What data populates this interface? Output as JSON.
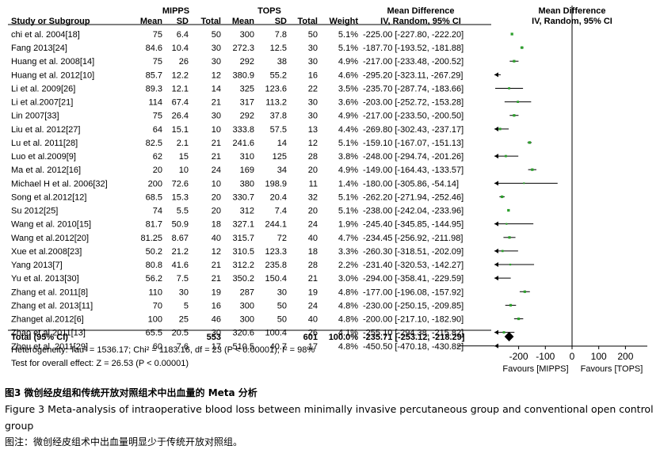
{
  "chart_data": {
    "type": "forest",
    "group_headers": [
      "MIPPS",
      "TOPS"
    ],
    "columns": [
      "Study or Subgroup",
      "Mean",
      "SD",
      "Total",
      "Mean",
      "SD",
      "Total",
      "Weight"
    ],
    "effect_header": "Mean Difference",
    "effect_subheader": "IV, Random, 95% CI",
    "plot_header": "Mean Difference",
    "plot_subheader": "IV, Random, 95% CI",
    "studies": [
      {
        "study": "chi et al. 2004[18]",
        "m1": "75",
        "sd1": "6.4",
        "n1": "50",
        "m2": "300",
        "sd2": "7.8",
        "n2": "50",
        "weight": "5.1%",
        "ci": "-225.00 [-227.80, -222.20]",
        "md": -225.0,
        "lo": -227.8,
        "hi": -222.2
      },
      {
        "study": "Fang 2013[24]",
        "m1": "84.6",
        "sd1": "10.4",
        "n1": "30",
        "m2": "272.3",
        "sd2": "12.5",
        "n2": "30",
        "weight": "5.1%",
        "ci": "-187.70 [-193.52, -181.88]",
        "md": -187.7,
        "lo": -193.52,
        "hi": -181.88
      },
      {
        "study": "Huang et al. 2008[14]",
        "m1": "75",
        "sd1": "26",
        "n1": "30",
        "m2": "292",
        "sd2": "38",
        "n2": "30",
        "weight": "4.9%",
        "ci": "-217.00 [-233.48, -200.52]",
        "md": -217.0,
        "lo": -233.48,
        "hi": -200.52
      },
      {
        "study": "Huang et al. 2012[10]",
        "m1": "85.7",
        "sd1": "12.2",
        "n1": "12",
        "m2": "380.9",
        "sd2": "55.2",
        "n2": "16",
        "weight": "4.6%",
        "ci": "-295.20 [-323.11, -267.29]",
        "md": -295.2,
        "lo": -323.11,
        "hi": -267.29
      },
      {
        "study": "Li et al. 2009[26]",
        "m1": "89.3",
        "sd1": "12.1",
        "n1": "14",
        "m2": "325",
        "sd2": "123.6",
        "n2": "22",
        "weight": "3.5%",
        "ci": "-235.70 [-287.74, -183.66]",
        "md": -235.7,
        "lo": -287.74,
        "hi": -183.66
      },
      {
        "study": "Li et al.2007[21]",
        "m1": "114",
        "sd1": "67.4",
        "n1": "21",
        "m2": "317",
        "sd2": "113.2",
        "n2": "30",
        "weight": "3.6%",
        "ci": "-203.00 [-252.72, -153.28]",
        "md": -203.0,
        "lo": -252.72,
        "hi": -153.28
      },
      {
        "study": "Lin 2007[33]",
        "m1": "75",
        "sd1": "26.4",
        "n1": "30",
        "m2": "292",
        "sd2": "37.8",
        "n2": "30",
        "weight": "4.9%",
        "ci": "-217.00 [-233.50, -200.50]",
        "md": -217.0,
        "lo": -233.5,
        "hi": -200.5
      },
      {
        "study": "Liu et al. 2012[27]",
        "m1": "64",
        "sd1": "15.1",
        "n1": "10",
        "m2": "333.8",
        "sd2": "57.5",
        "n2": "13",
        "weight": "4.4%",
        "ci": "-269.80 [-302.43, -237.17]",
        "md": -269.8,
        "lo": -302.43,
        "hi": -237.17
      },
      {
        "study": "Lu et al. 2011[28]",
        "m1": "82.5",
        "sd1": "2.1",
        "n1": "21",
        "m2": "241.6",
        "sd2": "14",
        "n2": "12",
        "weight": "5.1%",
        "ci": "-159.10 [-167.07, -151.13]",
        "md": -159.1,
        "lo": -167.07,
        "hi": -151.13
      },
      {
        "study": "Luo et al.2009[9]",
        "m1": "62",
        "sd1": "15",
        "n1": "21",
        "m2": "310",
        "sd2": "125",
        "n2": "28",
        "weight": "3.8%",
        "ci": "-248.00 [-294.74, -201.26]",
        "md": -248.0,
        "lo": -294.74,
        "hi": -201.26
      },
      {
        "study": "Ma et al. 2012[16]",
        "m1": "20",
        "sd1": "10",
        "n1": "24",
        "m2": "169",
        "sd2": "34",
        "n2": "20",
        "weight": "4.9%",
        "ci": "-149.00 [-164.43, -133.57]",
        "md": -149.0,
        "lo": -164.43,
        "hi": -133.57
      },
      {
        "study": "Michael H et al. 2006[32]",
        "m1": "200",
        "sd1": "72.6",
        "n1": "10",
        "m2": "380",
        "sd2": "198.9",
        "n2": "11",
        "weight": "1.4%",
        "ci": "-180.00 [-305.86, -54.14]",
        "md": -180.0,
        "lo": -305.86,
        "hi": -54.14
      },
      {
        "study": "Song et al.2012[12]",
        "m1": "68.5",
        "sd1": "15.3",
        "n1": "20",
        "m2": "330.7",
        "sd2": "20.4",
        "n2": "32",
        "weight": "5.1%",
        "ci": "-262.20 [-271.94, -252.46]",
        "md": -262.2,
        "lo": -271.94,
        "hi": -252.46
      },
      {
        "study": "Su 2012[25]",
        "m1": "74",
        "sd1": "5.5",
        "n1": "20",
        "m2": "312",
        "sd2": "7.4",
        "n2": "20",
        "weight": "5.1%",
        "ci": "-238.00 [-242.04, -233.96]",
        "md": -238.0,
        "lo": -242.04,
        "hi": -233.96
      },
      {
        "study": "Wang et al. 2010[15]",
        "m1": "81.7",
        "sd1": "50.9",
        "n1": "18",
        "m2": "327.1",
        "sd2": "244.1",
        "n2": "24",
        "weight": "1.9%",
        "ci": "-245.40 [-345.85, -144.95]",
        "md": -245.4,
        "lo": -345.85,
        "hi": -144.95
      },
      {
        "study": "Wang et al.2012[20]",
        "m1": "81.25",
        "sd1": "8.67",
        "n1": "40",
        "m2": "315.7",
        "sd2": "72",
        "n2": "40",
        "weight": "4.7%",
        "ci": "-234.45 [-256.92, -211.98]",
        "md": -234.45,
        "lo": -256.92,
        "hi": -211.98
      },
      {
        "study": "Xue et al.2008[23]",
        "m1": "50.2",
        "sd1": "21.2",
        "n1": "12",
        "m2": "310.5",
        "sd2": "123.3",
        "n2": "18",
        "weight": "3.3%",
        "ci": "-260.30 [-318.51, -202.09]",
        "md": -260.3,
        "lo": -318.51,
        "hi": -202.09
      },
      {
        "study": "Yang 2013[7]",
        "m1": "80.8",
        "sd1": "41.6",
        "n1": "21",
        "m2": "312.2",
        "sd2": "235.8",
        "n2": "28",
        "weight": "2.2%",
        "ci": "-231.40 [-320.53, -142.27]",
        "md": -231.4,
        "lo": -320.53,
        "hi": -142.27
      },
      {
        "study": "Yu et al. 2013[30]",
        "m1": "56.2",
        "sd1": "7.5",
        "n1": "21",
        "m2": "350.2",
        "sd2": "150.4",
        "n2": "21",
        "weight": "3.0%",
        "ci": "-294.00 [-358.41, -229.59]",
        "md": -294.0,
        "lo": -358.41,
        "hi": -229.59
      },
      {
        "study": "Zhang et al. 2011[8]",
        "m1": "110",
        "sd1": "30",
        "n1": "19",
        "m2": "287",
        "sd2": "30",
        "n2": "19",
        "weight": "4.8%",
        "ci": "-177.00 [-196.08, -157.92]",
        "md": -177.0,
        "lo": -196.08,
        "hi": -157.92
      },
      {
        "study": "Zhang et al. 2013[11]",
        "m1": "70",
        "sd1": "5",
        "n1": "16",
        "m2": "300",
        "sd2": "50",
        "n2": "24",
        "weight": "4.8%",
        "ci": "-230.00 [-250.15, -209.85]",
        "md": -230.0,
        "lo": -250.15,
        "hi": -209.85
      },
      {
        "study": "Zhanget al.2012[6]",
        "m1": "100",
        "sd1": "25",
        "n1": "46",
        "m2": "300",
        "sd2": "50",
        "n2": "40",
        "weight": "4.8%",
        "ci": "-200.00 [-217.10, -182.90]",
        "md": -200.0,
        "lo": -217.1,
        "hi": -182.9
      },
      {
        "study": "Zhao et al.2011[13]",
        "m1": "65.5",
        "sd1": "20.5",
        "n1": "30",
        "m2": "320.6",
        "sd2": "100.4",
        "n2": "26",
        "weight": "4.1%",
        "ci": "-255.10 [-294.38, -215.82]",
        "md": -255.1,
        "lo": -294.38,
        "hi": -215.82
      },
      {
        "study": "Zhou et al. 2011[29]",
        "m1": "60",
        "sd1": "7.6",
        "n1": "17",
        "m2": "510.5",
        "sd2": "40.7",
        "n2": "17",
        "weight": "4.8%",
        "ci": "-450.50 [-470.18, -430.82]",
        "md": -450.5,
        "lo": -470.18,
        "hi": -430.82
      }
    ],
    "total": {
      "label": "Total (95% CI)",
      "n1": "553",
      "n2": "601",
      "weight": "100.0%",
      "ci": "-235.71 [-253.12, -218.29]",
      "md": -235.71,
      "lo": -253.12,
      "hi": -218.29
    },
    "heterogeneity": "Heterogeneity: Tau² = 1536.17; Chi² = 1183.16, df = 23 (P < 0.00001); I² = 98%",
    "overall_test": "Test for overall effect: Z = 26.53 (P < 0.00001)",
    "axis": {
      "ticks": [
        -200,
        -100,
        0,
        100,
        200
      ],
      "tick_labels": [
        "-200",
        "-100",
        "0",
        "100",
        "200"
      ],
      "xlim": [
        -300,
        280
      ]
    },
    "favours_left": "Favours [MIPPS]",
    "favours_right": "Favours [TOPS]",
    "colors": {
      "marker": "#2ca02c",
      "line": "#000000",
      "total": "#000000"
    }
  },
  "caption": {
    "cn": "图3   微创经皮组和传统开放对照组术中出血量的 Meta 分析",
    "en": "Figure 3   Meta-analysis of intraoperative blood loss between minimally invasive percutaneous group and conventional open control group",
    "note": "图注：微创经皮组术中出血量明显少于传统开放对照组。"
  }
}
